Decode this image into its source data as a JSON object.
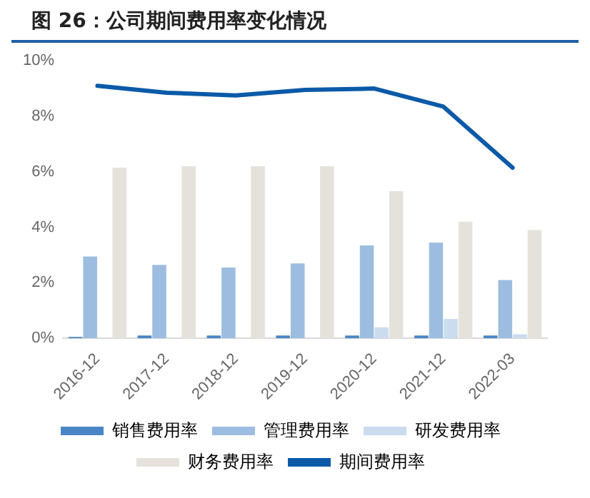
{
  "chart_data": {
    "type": "bar",
    "title": "图 26：公司期间费用率变化情况",
    "categories": [
      "2016-12",
      "2017-12",
      "2018-12",
      "2019-12",
      "2020-12",
      "2021-12",
      "2022-03"
    ],
    "series": [
      {
        "name": "销售费用率",
        "color": "#4a86c5",
        "values": [
          0.05,
          0.1,
          0.1,
          0.1,
          0.1,
          0.1,
          0.1
        ]
      },
      {
        "name": "管理费用率",
        "color": "#9dbde0",
        "values": [
          2.95,
          2.65,
          2.55,
          2.7,
          3.35,
          3.45,
          2.1
        ]
      },
      {
        "name": "研发费用率",
        "color": "#cadcee",
        "values": [
          null,
          0,
          0,
          0,
          0.4,
          0.7,
          0.15
        ]
      },
      {
        "name": "财务费用率",
        "color": "#e5e2dc",
        "values": [
          6.15,
          6.2,
          6.2,
          6.2,
          5.3,
          4.2,
          3.9
        ]
      },
      {
        "name": "期间费用率",
        "color": "#0b5aa8",
        "type": "line",
        "values": [
          9.1,
          8.85,
          8.75,
          8.95,
          9.0,
          8.35,
          6.15
        ]
      }
    ],
    "ylim": [
      0,
      10
    ],
    "yticks": [
      {
        "value": 0,
        "label": "0%"
      },
      {
        "value": 2,
        "label": "2%"
      },
      {
        "value": 4,
        "label": "4%"
      },
      {
        "value": 6,
        "label": "6%"
      },
      {
        "value": 8,
        "label": "8%"
      },
      {
        "value": 10,
        "label": "10%"
      }
    ],
    "grid": false,
    "legend": "bottom",
    "marker": "none",
    "line_style": "solid"
  }
}
